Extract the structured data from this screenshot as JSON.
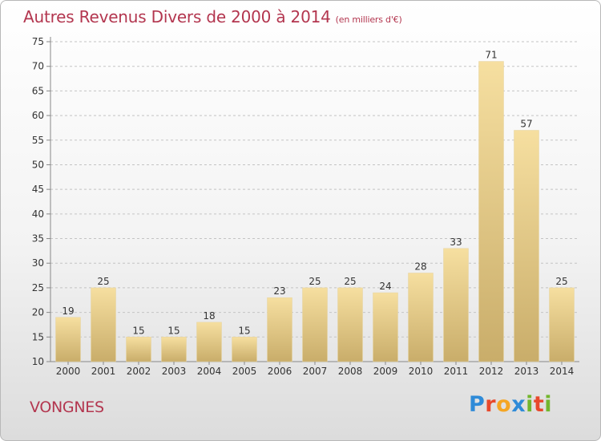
{
  "title": {
    "main": "Autres Revenus Divers de 2000 à 2014",
    "unit": "(en milliers d'€)"
  },
  "commune": "VONGNES",
  "brand": {
    "letters": [
      "P",
      "r",
      "o",
      "x",
      "i",
      "t",
      "i"
    ],
    "colors": [
      "#2f8bd8",
      "#e8492c",
      "#f5a623",
      "#2f8bd8",
      "#72b62d",
      "#e8492c",
      "#72b62d"
    ]
  },
  "colors": {
    "title": "#b3364f",
    "bar_light": "#f6dfa0",
    "bar_dark": "#c9ad6a"
  },
  "chart_data": {
    "type": "bar",
    "title": "Autres Revenus Divers de 2000 à 2014",
    "subtitle": "(en milliers d'€)",
    "xlabel": "",
    "ylabel": "",
    "categories": [
      "2000",
      "2001",
      "2002",
      "2003",
      "2004",
      "2005",
      "2006",
      "2007",
      "2008",
      "2009",
      "2010",
      "2011",
      "2012",
      "2013",
      "2014"
    ],
    "values": [
      19,
      25,
      15,
      15,
      18,
      15,
      23,
      25,
      25,
      24,
      28,
      33,
      71,
      57,
      25
    ],
    "ylim": [
      10,
      75
    ],
    "yticks": [
      10,
      15,
      20,
      25,
      30,
      35,
      40,
      45,
      50,
      55,
      60,
      65,
      70,
      75
    ],
    "grid": "horizontal dashed",
    "legend": "none"
  }
}
